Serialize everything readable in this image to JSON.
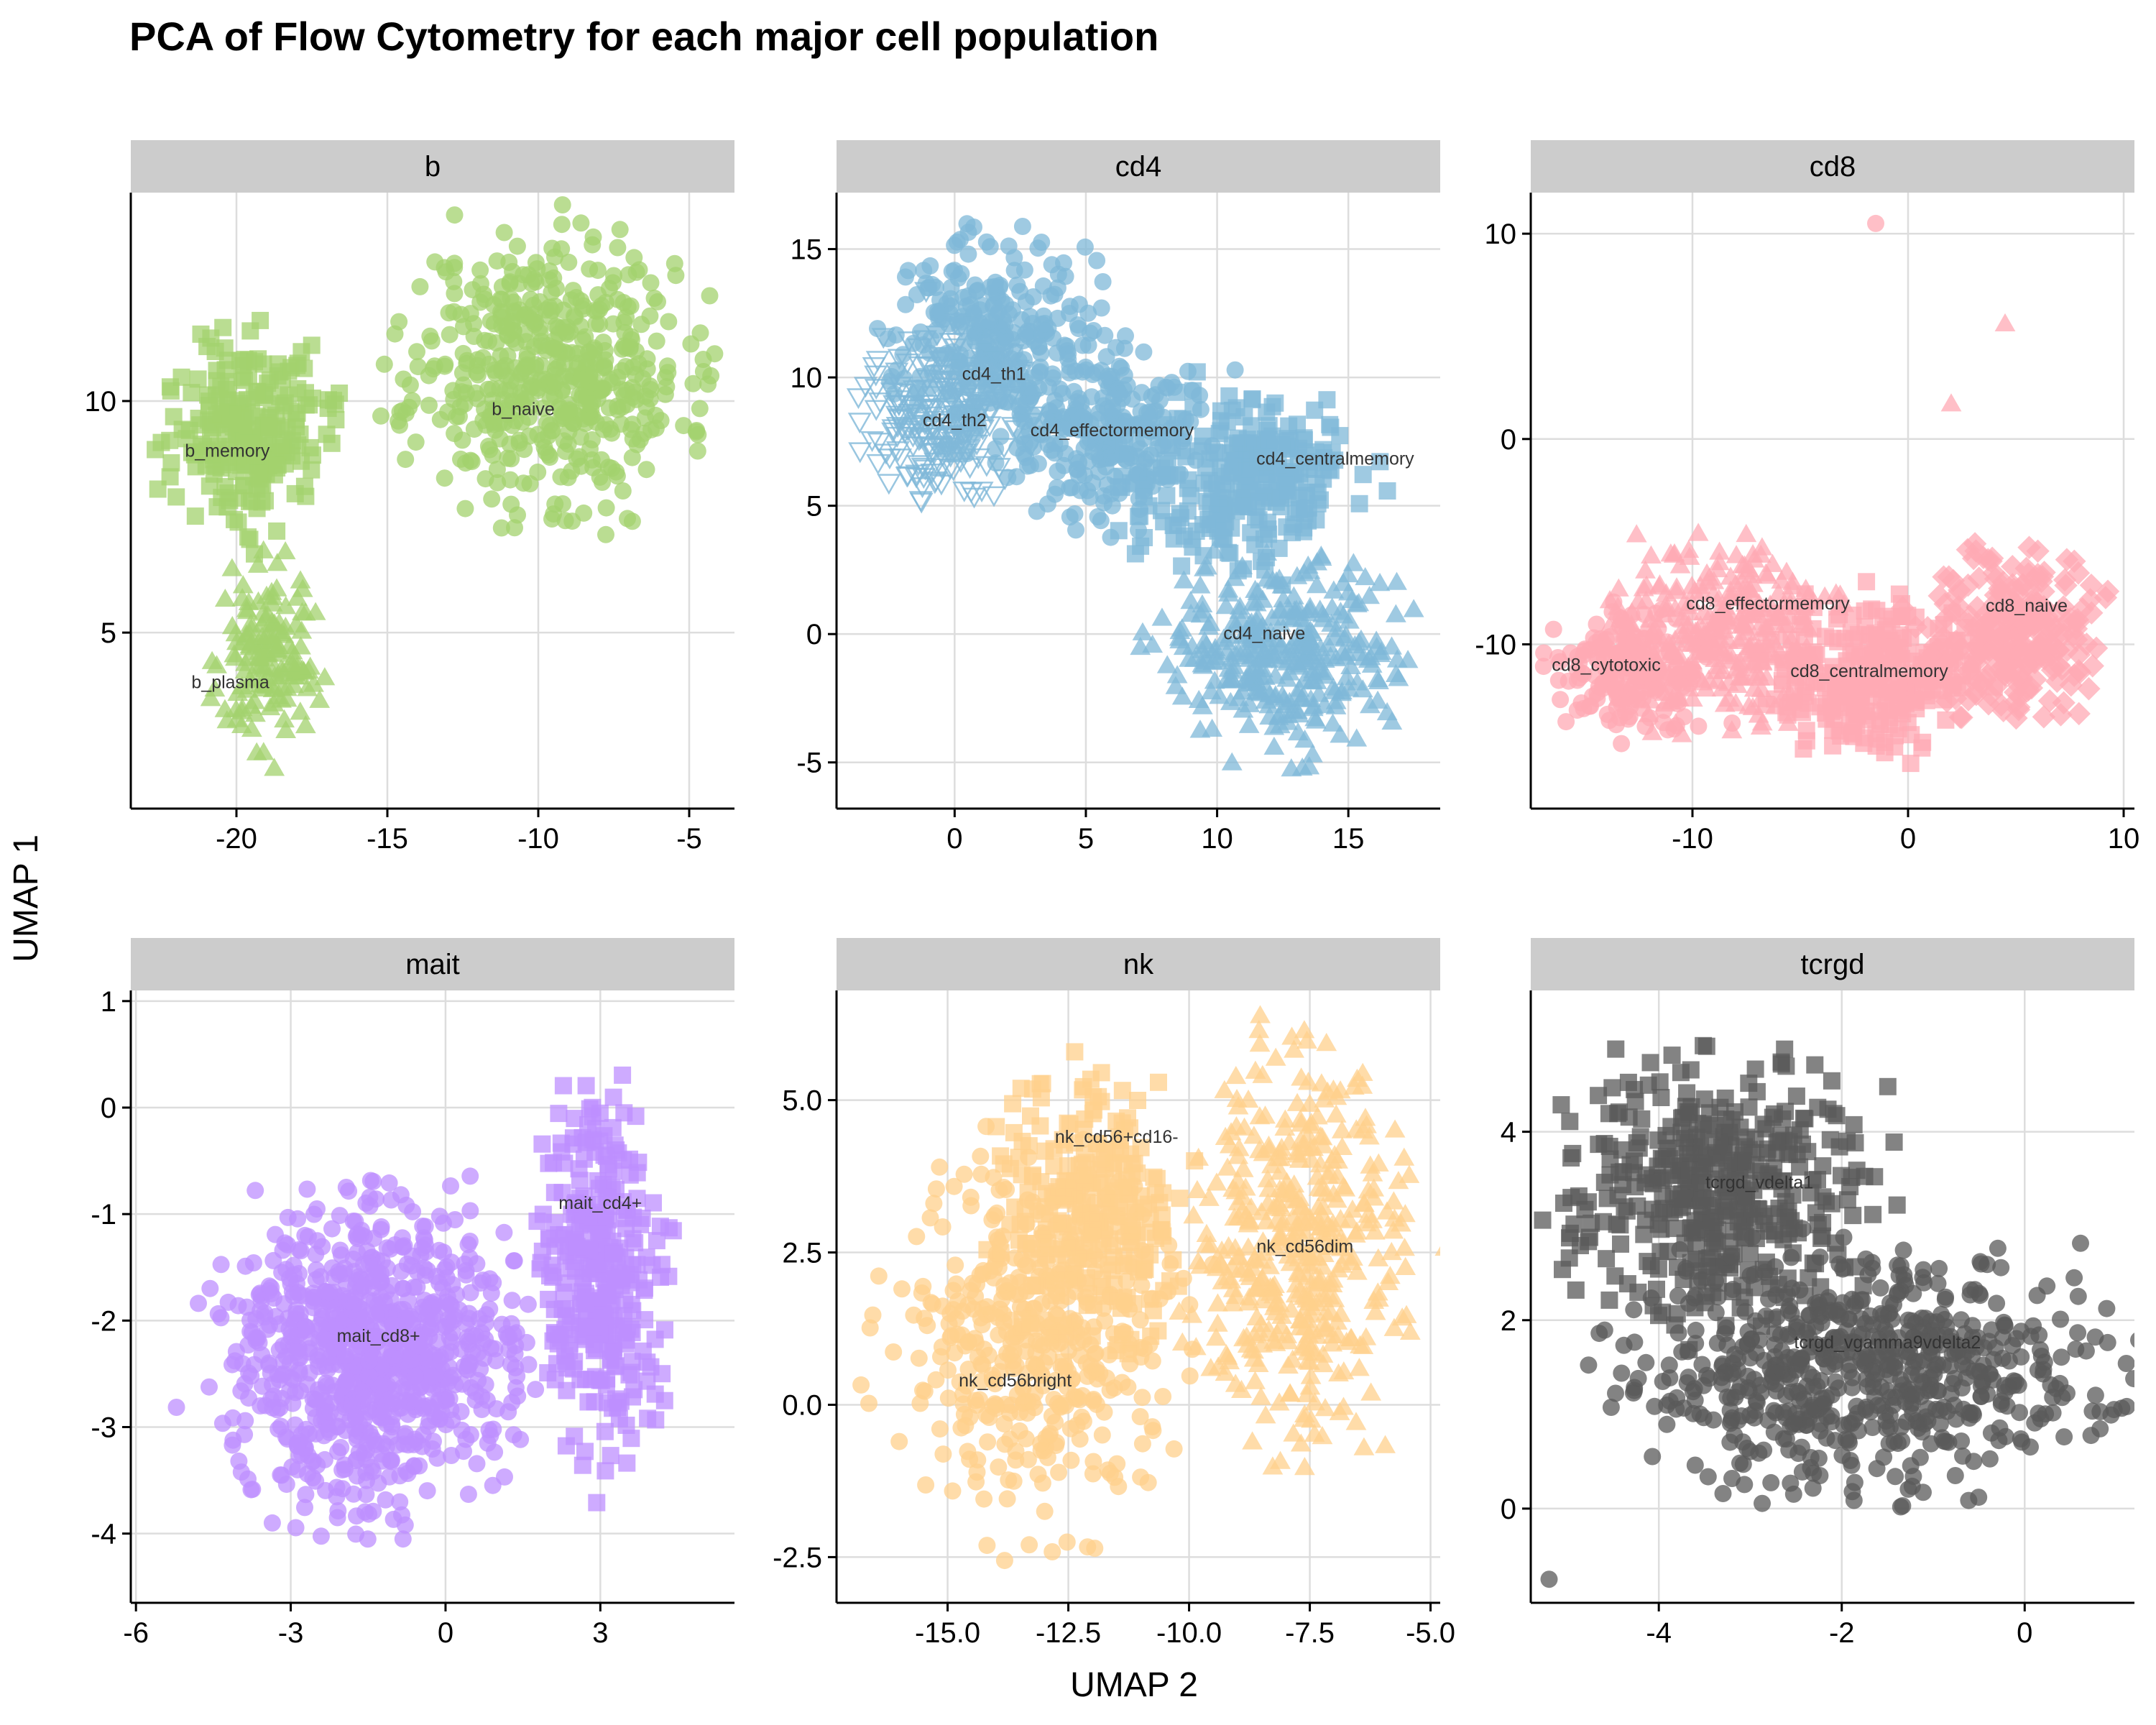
{
  "title": "PCA of Flow Cytometry for each major cell population",
  "xlabel": "UMAP 2",
  "ylabel": "UMAP 1",
  "chart_data": [
    {
      "type": "scatter",
      "panel": "b",
      "color": "#A3D16E",
      "xlim": [
        -23.5,
        -3.5
      ],
      "ylim": [
        1.2,
        14.5
      ],
      "xticks": [
        -20,
        -15,
        -10,
        -5
      ],
      "xtick_labels": [
        "-20",
        "-15",
        "-10",
        "-5"
      ],
      "yticks": [
        5,
        10
      ],
      "ytick_labels": [
        "5",
        "10"
      ],
      "clusters": [
        {
          "label": "b_naive",
          "shape": "circle",
          "x": -9.6,
          "y": 10.7,
          "rx": 5.3,
          "ry": 3.4,
          "n": 520,
          "label_x": -10.5,
          "label_y": 9.7
        },
        {
          "label": "b_memory",
          "shape": "square",
          "x": -19.6,
          "y": 9.4,
          "rx": 3.0,
          "ry": 2.3,
          "n": 240,
          "label_x": -20.3,
          "label_y": 8.8
        },
        {
          "label": "b_plasma",
          "shape": "triangle",
          "x": -19.0,
          "y": 4.4,
          "rx": 1.9,
          "ry": 2.2,
          "n": 150,
          "label_x": -20.2,
          "label_y": 3.8
        }
      ]
    },
    {
      "type": "scatter",
      "panel": "cd4",
      "color": "#7FB8D8",
      "xlim": [
        -4.5,
        18.5
      ],
      "ylim": [
        -6.8,
        17.2
      ],
      "xticks": [
        0,
        5,
        10,
        15
      ],
      "xtick_labels": [
        "0",
        "5",
        "10",
        "15"
      ],
      "yticks": [
        -5,
        0,
        5,
        10,
        15
      ],
      "ytick_labels": [
        "-5",
        "0",
        "5",
        "10",
        "15"
      ],
      "clusters": [
        {
          "label": "cd4_th1",
          "shape": "circle",
          "x": 1.5,
          "y": 11.5,
          "rx": 4.5,
          "ry": 4.5,
          "n": 260,
          "label_x": 1.5,
          "label_y": 9.9
        },
        {
          "label": "cd4_th2",
          "shape": "triangle-down",
          "x": -0.5,
          "y": 8.5,
          "rx": 3.5,
          "ry": 3.5,
          "n": 220,
          "label_x": 0,
          "label_y": 8.1
        },
        {
          "label": "cd4_effectormemory",
          "shape": "circle",
          "x": 5.5,
          "y": 8.0,
          "rx": 4.5,
          "ry": 4.0,
          "n": 260,
          "label_x": 6.0,
          "label_y": 7.7
        },
        {
          "label": "cd4_centralmemory",
          "shape": "square",
          "x": 11.0,
          "y": 6.0,
          "rx": 5.0,
          "ry": 4.0,
          "n": 280,
          "label_x": 14.5,
          "label_y": 6.6
        },
        {
          "label": "cd4_naive",
          "shape": "triangle",
          "x": 12.5,
          "y": -0.8,
          "rx": 5.0,
          "ry": 4.2,
          "n": 320,
          "label_x": 11.8,
          "label_y": -0.2
        }
      ]
    },
    {
      "type": "scatter",
      "panel": "cd8",
      "color": "#FFAAB4",
      "xlim": [
        -17.5,
        10.5
      ],
      "ylim": [
        -18.0,
        12.0
      ],
      "xticks": [
        -10,
        0,
        10
      ],
      "xtick_labels": [
        "-10",
        "0",
        "10"
      ],
      "yticks": [
        -10,
        0,
        10
      ],
      "ytick_labels": [
        "-10",
        "0",
        "10"
      ],
      "clusters": [
        {
          "label": "cd8_effectormemory",
          "shape": "triangle",
          "x": -8.5,
          "y": -9.5,
          "rx": 5.5,
          "ry": 5.0,
          "n": 300,
          "label_x": -6.5,
          "label_y": -8.3
        },
        {
          "label": "cd8_cytotoxic",
          "shape": "circle",
          "x": -13.0,
          "y": -11.5,
          "rx": 3.8,
          "ry": 3.5,
          "n": 200,
          "label_x": -14.0,
          "label_y": -11.3
        },
        {
          "label": "cd8_centralmemory",
          "shape": "square",
          "x": -2.0,
          "y": -11.5,
          "rx": 5.5,
          "ry": 4.2,
          "n": 280,
          "label_x": -1.8,
          "label_y": -11.6
        },
        {
          "label": "cd8_naive",
          "shape": "diamond",
          "x": 5.0,
          "y": -9.5,
          "rx": 4.3,
          "ry": 4.5,
          "n": 260,
          "label_x": 5.5,
          "label_y": -8.4
        }
      ],
      "outliers": [
        {
          "x": -1.5,
          "y": 10.5,
          "shape": "circle"
        },
        {
          "x": 4.5,
          "y": 5.6,
          "shape": "triangle"
        },
        {
          "x": 2.0,
          "y": 1.7,
          "shape": "triangle"
        }
      ]
    },
    {
      "type": "scatter",
      "panel": "mait",
      "color": "#BE8FFF",
      "xlim": [
        -6.1,
        5.6
      ],
      "ylim": [
        -4.65,
        1.1
      ],
      "xticks": [
        -6,
        -3,
        0,
        3
      ],
      "xtick_labels": [
        "-6",
        "-3",
        "0",
        "3"
      ],
      "yticks": [
        -4,
        -3,
        -2,
        -1,
        0,
        1
      ],
      "ytick_labels": [
        "-4",
        "-3",
        "-2",
        "-1",
        "0",
        "1"
      ],
      "clusters": [
        {
          "label": "mait_cd8+",
          "shape": "circle",
          "x": -1.4,
          "y": -2.35,
          "rx": 3.1,
          "ry": 1.6,
          "n": 900,
          "label_x": -1.3,
          "label_y": -2.2
        },
        {
          "label": "mait_cd4+",
          "shape": "square",
          "x": 3.0,
          "y": -1.6,
          "rx": 1.3,
          "ry": 1.95,
          "n": 330,
          "label_x": 3.0,
          "label_y": -0.95
        }
      ]
    },
    {
      "type": "scatter",
      "panel": "nk",
      "color": "#FFD08C",
      "xlim": [
        -17.3,
        -4.8
      ],
      "ylim": [
        -3.25,
        6.8
      ],
      "xticks": [
        -15.0,
        -12.5,
        -10.0,
        -7.5,
        -5.0
      ],
      "xtick_labels": [
        "-15.0",
        "-12.5",
        "-10.0",
        "-7.5",
        "-5.0"
      ],
      "yticks": [
        -2.5,
        0.0,
        2.5,
        5.0
      ],
      "ytick_labels": [
        "-2.5",
        "0.0",
        "2.5",
        "5.0"
      ],
      "clusters": [
        {
          "label": "nk_cd56bright",
          "shape": "circle",
          "x": -13.2,
          "y": 1.0,
          "rx": 3.2,
          "ry": 3.3,
          "n": 420,
          "label_x": -13.6,
          "label_y": 0.3
        },
        {
          "label": "nk_cd56+cd16-",
          "shape": "square",
          "x": -12.0,
          "y": 3.2,
          "rx": 2.2,
          "ry": 2.4,
          "n": 260,
          "label_x": -11.5,
          "label_y": 4.3
        },
        {
          "label": "nk_cd56dim",
          "shape": "triangle",
          "x": -7.8,
          "y": 2.5,
          "rx": 2.4,
          "ry": 3.7,
          "n": 420,
          "label_x": -7.6,
          "label_y": 2.5
        }
      ]
    },
    {
      "type": "scatter",
      "panel": "tcrgd",
      "color": "#5A5A5A",
      "xlim": [
        -5.4,
        1.2
      ],
      "ylim": [
        -1.0,
        5.5
      ],
      "xticks": [
        -4,
        -2,
        0
      ],
      "xtick_labels": [
        "-4",
        "-2",
        "0"
      ],
      "yticks": [
        0,
        2,
        4
      ],
      "ytick_labels": [
        "0",
        "2",
        "4"
      ],
      "clusters": [
        {
          "label": "tcrgd_vdelta1",
          "shape": "square",
          "x": -3.3,
          "y": 3.4,
          "rx": 1.9,
          "ry": 1.6,
          "n": 420,
          "label_x": -2.9,
          "label_y": 3.4
        },
        {
          "label": "tcrgd_vgamma9vdelta2",
          "shape": "circle",
          "x": -1.8,
          "y": 1.5,
          "rx": 2.8,
          "ry": 1.4,
          "n": 650,
          "label_x": -1.5,
          "label_y": 1.7
        }
      ],
      "outliers": [
        {
          "x": -5.2,
          "y": -0.75,
          "shape": "circle"
        }
      ]
    }
  ]
}
